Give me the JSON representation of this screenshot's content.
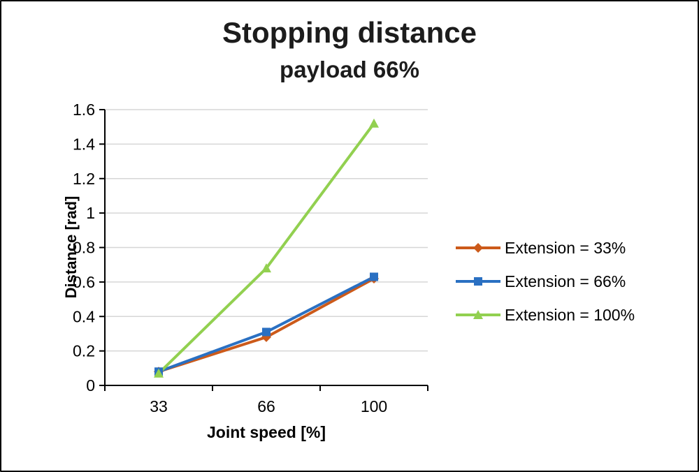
{
  "chart_data": {
    "type": "line",
    "title": "Stopping distance",
    "subtitle": "payload 66%",
    "xlabel": "Joint speed [%]",
    "ylabel": "Distance [rad]",
    "categories": [
      "33",
      "66",
      "100"
    ],
    "series": [
      {
        "name": "Extension = 33%",
        "marker": "diamond",
        "color": "#cc5a1a",
        "values": [
          0.08,
          0.28,
          0.62
        ]
      },
      {
        "name": "Extension = 66%",
        "marker": "square",
        "color": "#2a70c2",
        "values": [
          0.08,
          0.31,
          0.63
        ]
      },
      {
        "name": "Extension = 100%",
        "marker": "triangle",
        "color": "#92d050",
        "values": [
          0.07,
          0.68,
          1.52
        ]
      }
    ],
    "ylim": [
      0,
      1.6
    ],
    "ytick_step": 0.2,
    "yticks": [
      "0",
      "0.2",
      "0.4",
      "0.6",
      "0.8",
      "1",
      "1.2",
      "1.4",
      "1.6"
    ],
    "grid": true,
    "legend_position": "right"
  },
  "colors": {
    "grid": "#d6d6d6",
    "axis": "#000000",
    "title": "#1c1c1c"
  }
}
